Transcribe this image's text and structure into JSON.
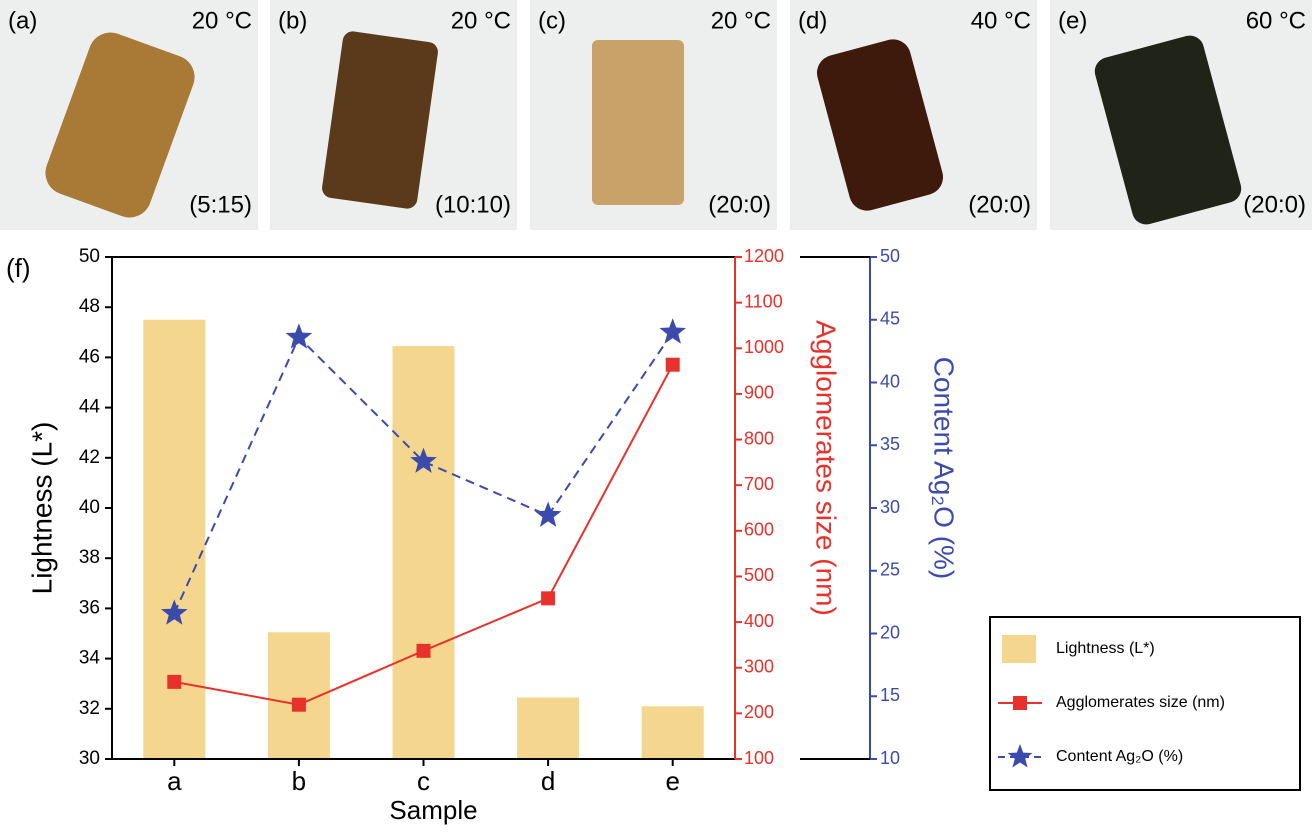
{
  "panels": [
    {
      "label": "(a)",
      "temperature": "20 °C",
      "ratio": "(5:15)"
    },
    {
      "label": "(b)",
      "temperature": "20 °C",
      "ratio": "(10:10)"
    },
    {
      "label": "(c)",
      "temperature": "20 °C",
      "ratio": "(20:0)"
    },
    {
      "label": "(d)",
      "temperature": "40 °C",
      "ratio": "(20:0)"
    },
    {
      "label": "(e)",
      "temperature": "60 °C",
      "ratio": "(20:0)"
    }
  ],
  "chart_label": "(f)",
  "chart_data": {
    "type": "combo",
    "x_label": "Sample",
    "y_label": "Lightness (L*)",
    "y2_label": "Agglomerates size (nm)",
    "y3_label": "Content Ag₂O (%)",
    "categories": [
      "a",
      "b",
      "c",
      "d",
      "e"
    ],
    "ylim": [
      30,
      50
    ],
    "yticks": [
      30,
      32,
      34,
      36,
      38,
      40,
      42,
      44,
      46,
      48,
      50
    ],
    "y2lim": [
      100,
      1200
    ],
    "y2ticks": [
      100,
      200,
      300,
      400,
      500,
      600,
      700,
      800,
      900,
      1000,
      1100,
      1200
    ],
    "y3lim": [
      10,
      50
    ],
    "y3ticks": [
      10,
      15,
      20,
      25,
      30,
      35,
      40,
      45,
      50
    ],
    "legend": "lower right",
    "series": [
      {
        "name": "Lightness (L*)",
        "type": "bar",
        "color": "#f5d68e",
        "values": [
          47.5,
          35.05,
          46.45,
          32.45,
          32.1
        ]
      },
      {
        "name": "Agglomerates size (nm)",
        "type": "line",
        "axis": "y2",
        "marker": "square",
        "line_style": "solid",
        "color": "#e8312a",
        "values": [
          269,
          219,
          337,
          452,
          964
        ]
      },
      {
        "name": "Content Ag₂O (%)",
        "type": "line",
        "axis": "y3",
        "marker": "star",
        "line_style": "dashed",
        "color": "#3a4bab",
        "values": [
          21.6,
          43.6,
          33.7,
          29.4,
          44.0
        ]
      }
    ]
  }
}
